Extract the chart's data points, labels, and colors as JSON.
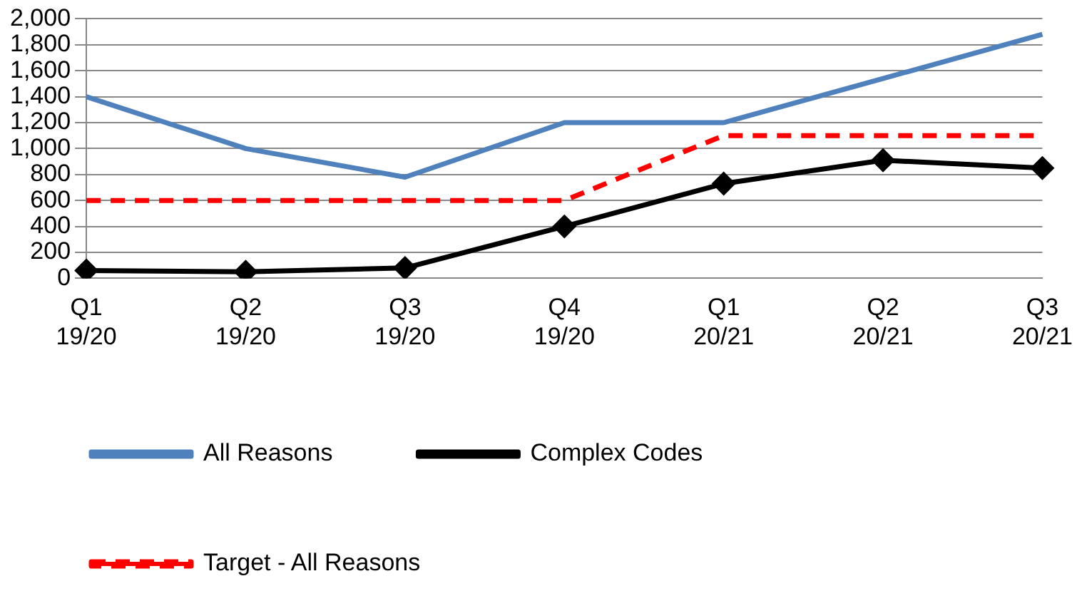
{
  "chart_data": {
    "type": "line",
    "categories": [
      "Q1 19/20",
      "Q2 19/20",
      "Q3 19/20",
      "Q4 19/20",
      "Q1 20/21",
      "Q2 20/21",
      "Q3 20/21"
    ],
    "series": [
      {
        "name": "All Reasons",
        "color": "#4f81bd",
        "values": [
          1400,
          1000,
          780,
          1200,
          1200,
          1540,
          1880
        ],
        "marker": "none",
        "line_style": "solid"
      },
      {
        "name": "Complex Codes",
        "color": "#000000",
        "values": [
          60,
          50,
          80,
          400,
          730,
          910,
          850
        ],
        "marker": "diamond",
        "line_style": "solid"
      },
      {
        "name": "Target - All Reasons",
        "color": "#ff0000",
        "values": [
          600,
          600,
          600,
          600,
          1100,
          1100,
          1100
        ],
        "marker": "none",
        "line_style": "dashed"
      }
    ],
    "ylim": [
      0,
      2000
    ],
    "yticks": [
      0,
      200,
      400,
      600,
      800,
      {
        "value": 1000,
        "label": "1,000"
      },
      {
        "value": 1200,
        "label": "1,200"
      },
      {
        "value": 1400,
        "label": "1,400"
      },
      {
        "value": 1600,
        "label": "1,600"
      },
      {
        "value": 1800,
        "label": "1,800"
      },
      {
        "value": 2000,
        "label": "2,000"
      }
    ],
    "grid": "y",
    "legend": "bottom"
  }
}
